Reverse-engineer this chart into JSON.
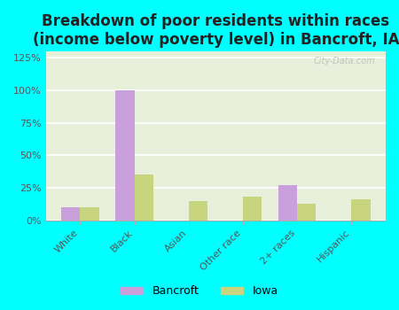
{
  "title": "Breakdown of poor residents within races\n(income below poverty level) in Bancroft, IA",
  "categories": [
    "White",
    "Black",
    "Asian",
    "Other race",
    "2+ races",
    "Hispanic"
  ],
  "bancroft_values": [
    10,
    100,
    0,
    0,
    27,
    0
  ],
  "iowa_values": [
    10,
    35,
    15,
    18,
    13,
    16
  ],
  "bancroft_color": "#c9a0dc",
  "iowa_color": "#c8d47e",
  "background_outer": "#00ffff",
  "ylim": [
    0,
    130
  ],
  "yticks": [
    0,
    25,
    50,
    75,
    100,
    125
  ],
  "ytick_labels": [
    "0%",
    "25%",
    "50%",
    "75%",
    "100%",
    "125%"
  ],
  "title_fontsize": 12,
  "tick_fontsize": 8,
  "legend_fontsize": 9,
  "bar_width": 0.35,
  "watermark": "City-Data.com"
}
